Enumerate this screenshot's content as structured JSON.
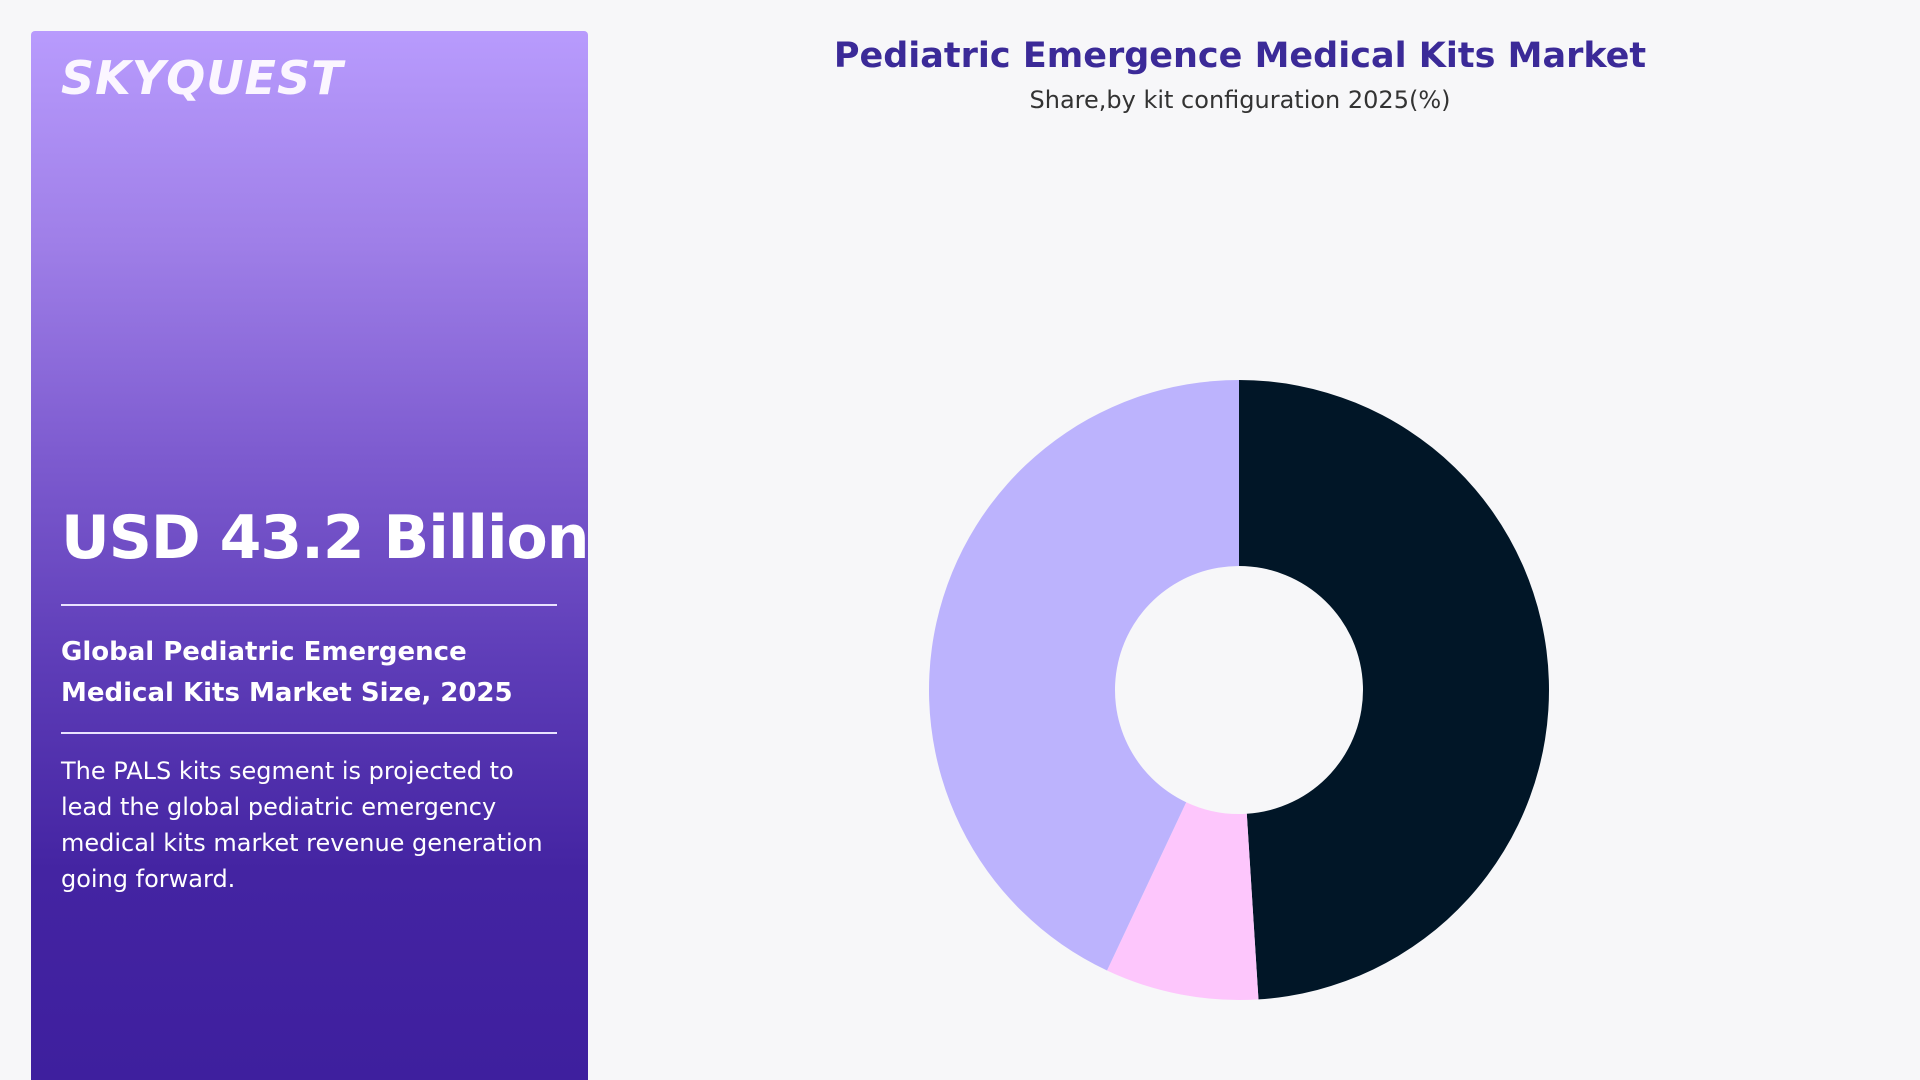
{
  "brand": {
    "logo_text": "SKYQUEST"
  },
  "panel": {
    "market_size": "USD 43.2 Billion",
    "size_label": "Global Pediatric Emergence Medical Kits Market Size, 2025",
    "description": "The PALS kits segment is projected to lead the global pediatric emergency medical kits market revenue generation going forward."
  },
  "colors": {
    "panel_gradient_top": "#b89bfd",
    "panel_gradient_bottom": "#3e1f9e",
    "title": "#3b2a98",
    "segment_1": "#011627",
    "segment_2": "#fdc6fc",
    "segment_3": "#bcb3fd",
    "background": "#f7f7f9"
  },
  "chart_data": {
    "type": "pie",
    "variant": "donut",
    "title": "Pediatric Emergence Medical Kits Market",
    "subtitle": "Share,by kit configuration 2025(%)",
    "legend": "none",
    "series": [
      {
        "values": [
          49,
          8,
          43
        ]
      }
    ],
    "colors": [
      "#011627",
      "#fdc6fc",
      "#bcb3fd"
    ],
    "start_angle_deg": 0,
    "direction": "clockwise"
  }
}
